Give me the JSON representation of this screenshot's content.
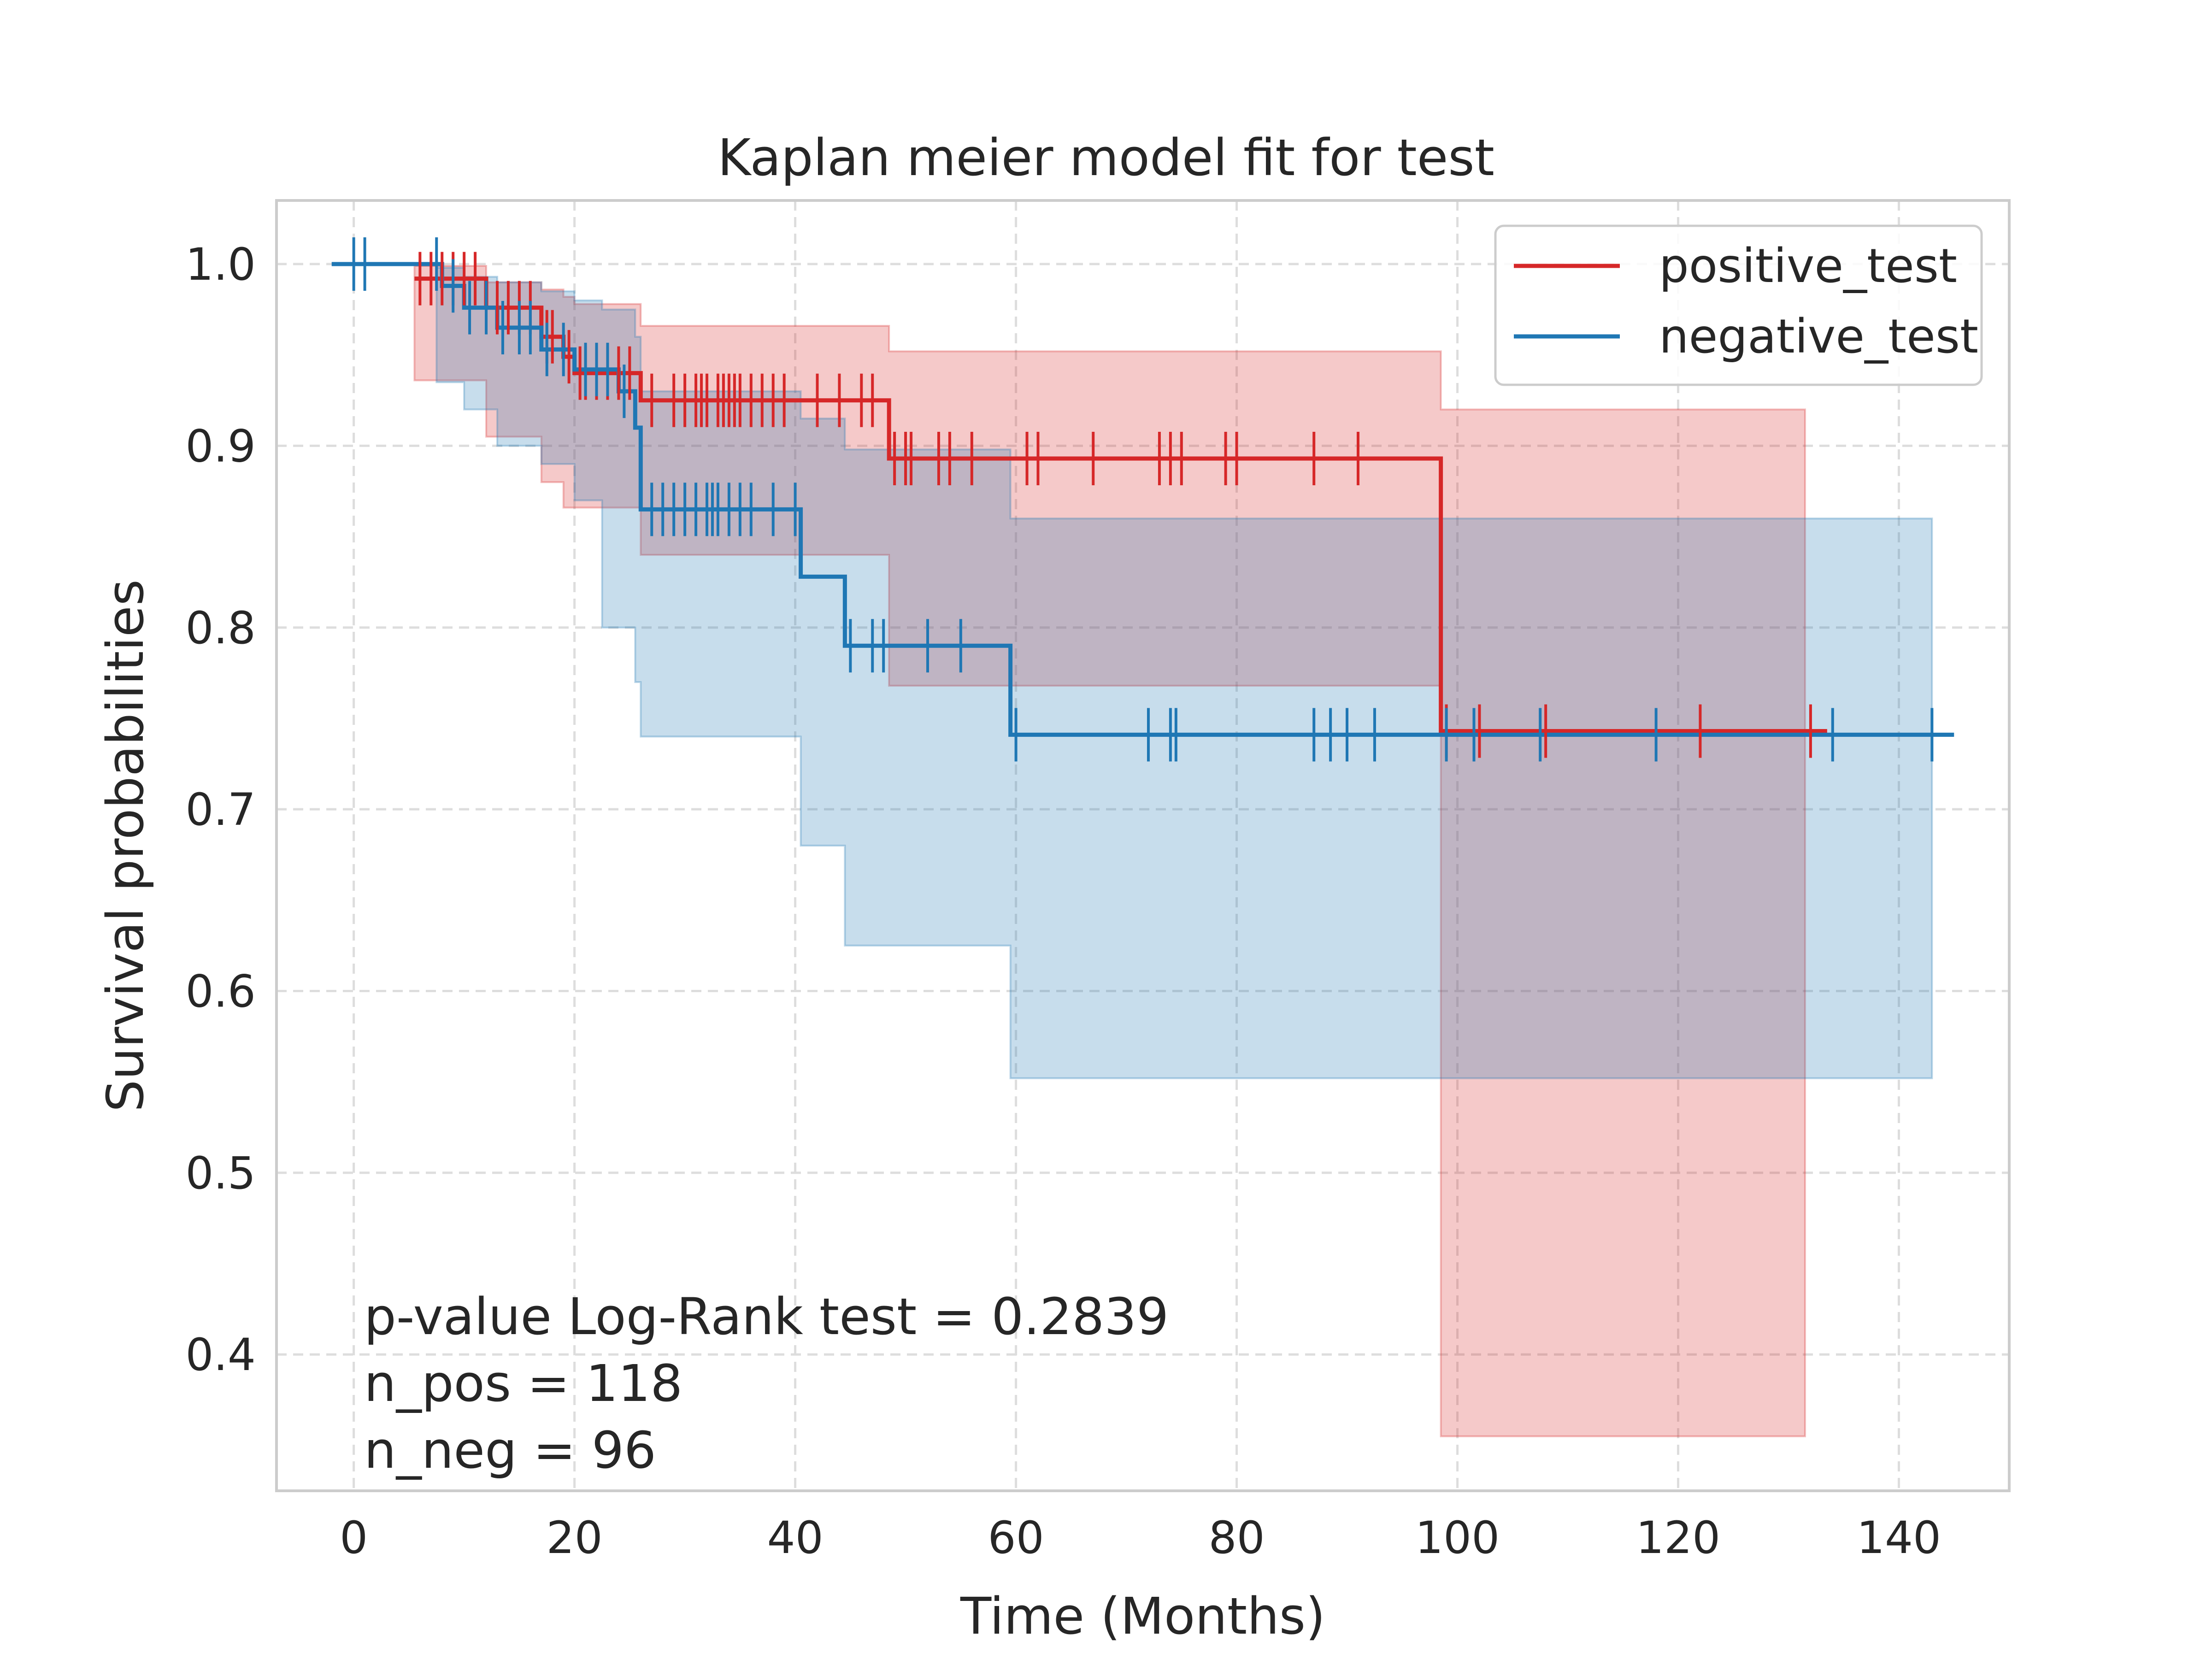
{
  "chart_data": {
    "type": "line",
    "subtype": "kaplan-meier",
    "title": "Kaplan meier model fit for test",
    "xlabel": "Time (Months)",
    "ylabel": "Survival probabilities",
    "xlim": [
      -7,
      150
    ],
    "ylim": [
      0.325,
      1.035
    ],
    "xticks": [
      0,
      20,
      40,
      60,
      80,
      100,
      120,
      140
    ],
    "yticks": [
      0.4,
      0.5,
      0.6,
      0.7,
      0.8,
      0.9,
      1.0
    ],
    "grid": true,
    "legend_position": "top-right",
    "series": [
      {
        "name": "positive_test",
        "color": "#d62728",
        "x": [
          5.5,
          12,
          17,
          19,
          20,
          26,
          48.5,
          98.5,
          133.5
        ],
        "y": [
          0.992,
          0.976,
          0.96,
          0.949,
          0.94,
          0.925,
          0.893,
          0.743,
          0.743
        ],
        "ci_x": [
          5.5,
          7.5,
          12,
          17,
          19,
          20,
          26,
          48.5,
          59.5,
          98.5,
          131.5
        ],
        "ci_lower": [
          0.936,
          0.936,
          0.905,
          0.88,
          0.866,
          0.866,
          0.84,
          0.768,
          0.768,
          0.355,
          0.355
        ],
        "ci_upper": [
          0.999,
          0.999,
          0.99,
          0.986,
          0.982,
          0.978,
          0.966,
          0.952,
          0.952,
          0.92,
          0.92
        ],
        "censored_x": [
          6,
          7,
          8,
          9,
          10,
          11,
          13,
          14,
          15,
          16,
          17.5,
          18,
          19.5,
          20.5,
          21,
          22,
          23,
          24,
          25,
          27,
          29,
          30,
          31,
          31.5,
          32,
          33,
          33.5,
          34,
          34.5,
          35,
          36,
          37,
          38,
          39,
          42,
          44,
          46,
          47,
          49,
          50,
          50.5,
          53,
          54,
          56,
          61,
          62,
          67,
          73,
          74,
          75,
          79,
          80,
          87,
          91,
          99,
          102,
          108,
          122,
          132
        ]
      },
      {
        "name": "negative_test",
        "color": "#1f77b4",
        "x": [
          -2,
          8,
          10,
          13,
          17,
          20,
          24,
          25.5,
          26,
          40.5,
          44.5,
          59.5,
          145
        ],
        "y": [
          1.0,
          0.988,
          0.976,
          0.965,
          0.953,
          0.942,
          0.93,
          0.91,
          0.865,
          0.828,
          0.79,
          0.741,
          0.741
        ],
        "ci_x": [
          7.5,
          10,
          13,
          17,
          20,
          22.5,
          25.5,
          26,
          40.5,
          44.5,
          59.5,
          143
        ],
        "ci_lower": [
          0.935,
          0.92,
          0.9,
          0.89,
          0.87,
          0.8,
          0.77,
          0.74,
          0.68,
          0.625,
          0.552,
          0.552
        ],
        "ci_upper": [
          0.998,
          0.993,
          0.99,
          0.985,
          0.98,
          0.975,
          0.96,
          0.93,
          0.915,
          0.898,
          0.86,
          0.86
        ],
        "censored_x": [
          0,
          1,
          7.5,
          9,
          10.5,
          12,
          13.5,
          15,
          16,
          17.5,
          19,
          21,
          22,
          23,
          24.5,
          27,
          28,
          29,
          30,
          31,
          32,
          32.5,
          33,
          34,
          35,
          36,
          38,
          40,
          45,
          47,
          48,
          52,
          55,
          60,
          72,
          74,
          74.5,
          87,
          88.5,
          90,
          92.5,
          99,
          101.5,
          107.5,
          118,
          134,
          143
        ]
      }
    ],
    "legend": [
      "positive_test",
      "negative_test"
    ],
    "annotations": [
      "p-value Log-Rank test = 0.2839",
      "n_pos = 118",
      "n_neg = 96"
    ]
  }
}
